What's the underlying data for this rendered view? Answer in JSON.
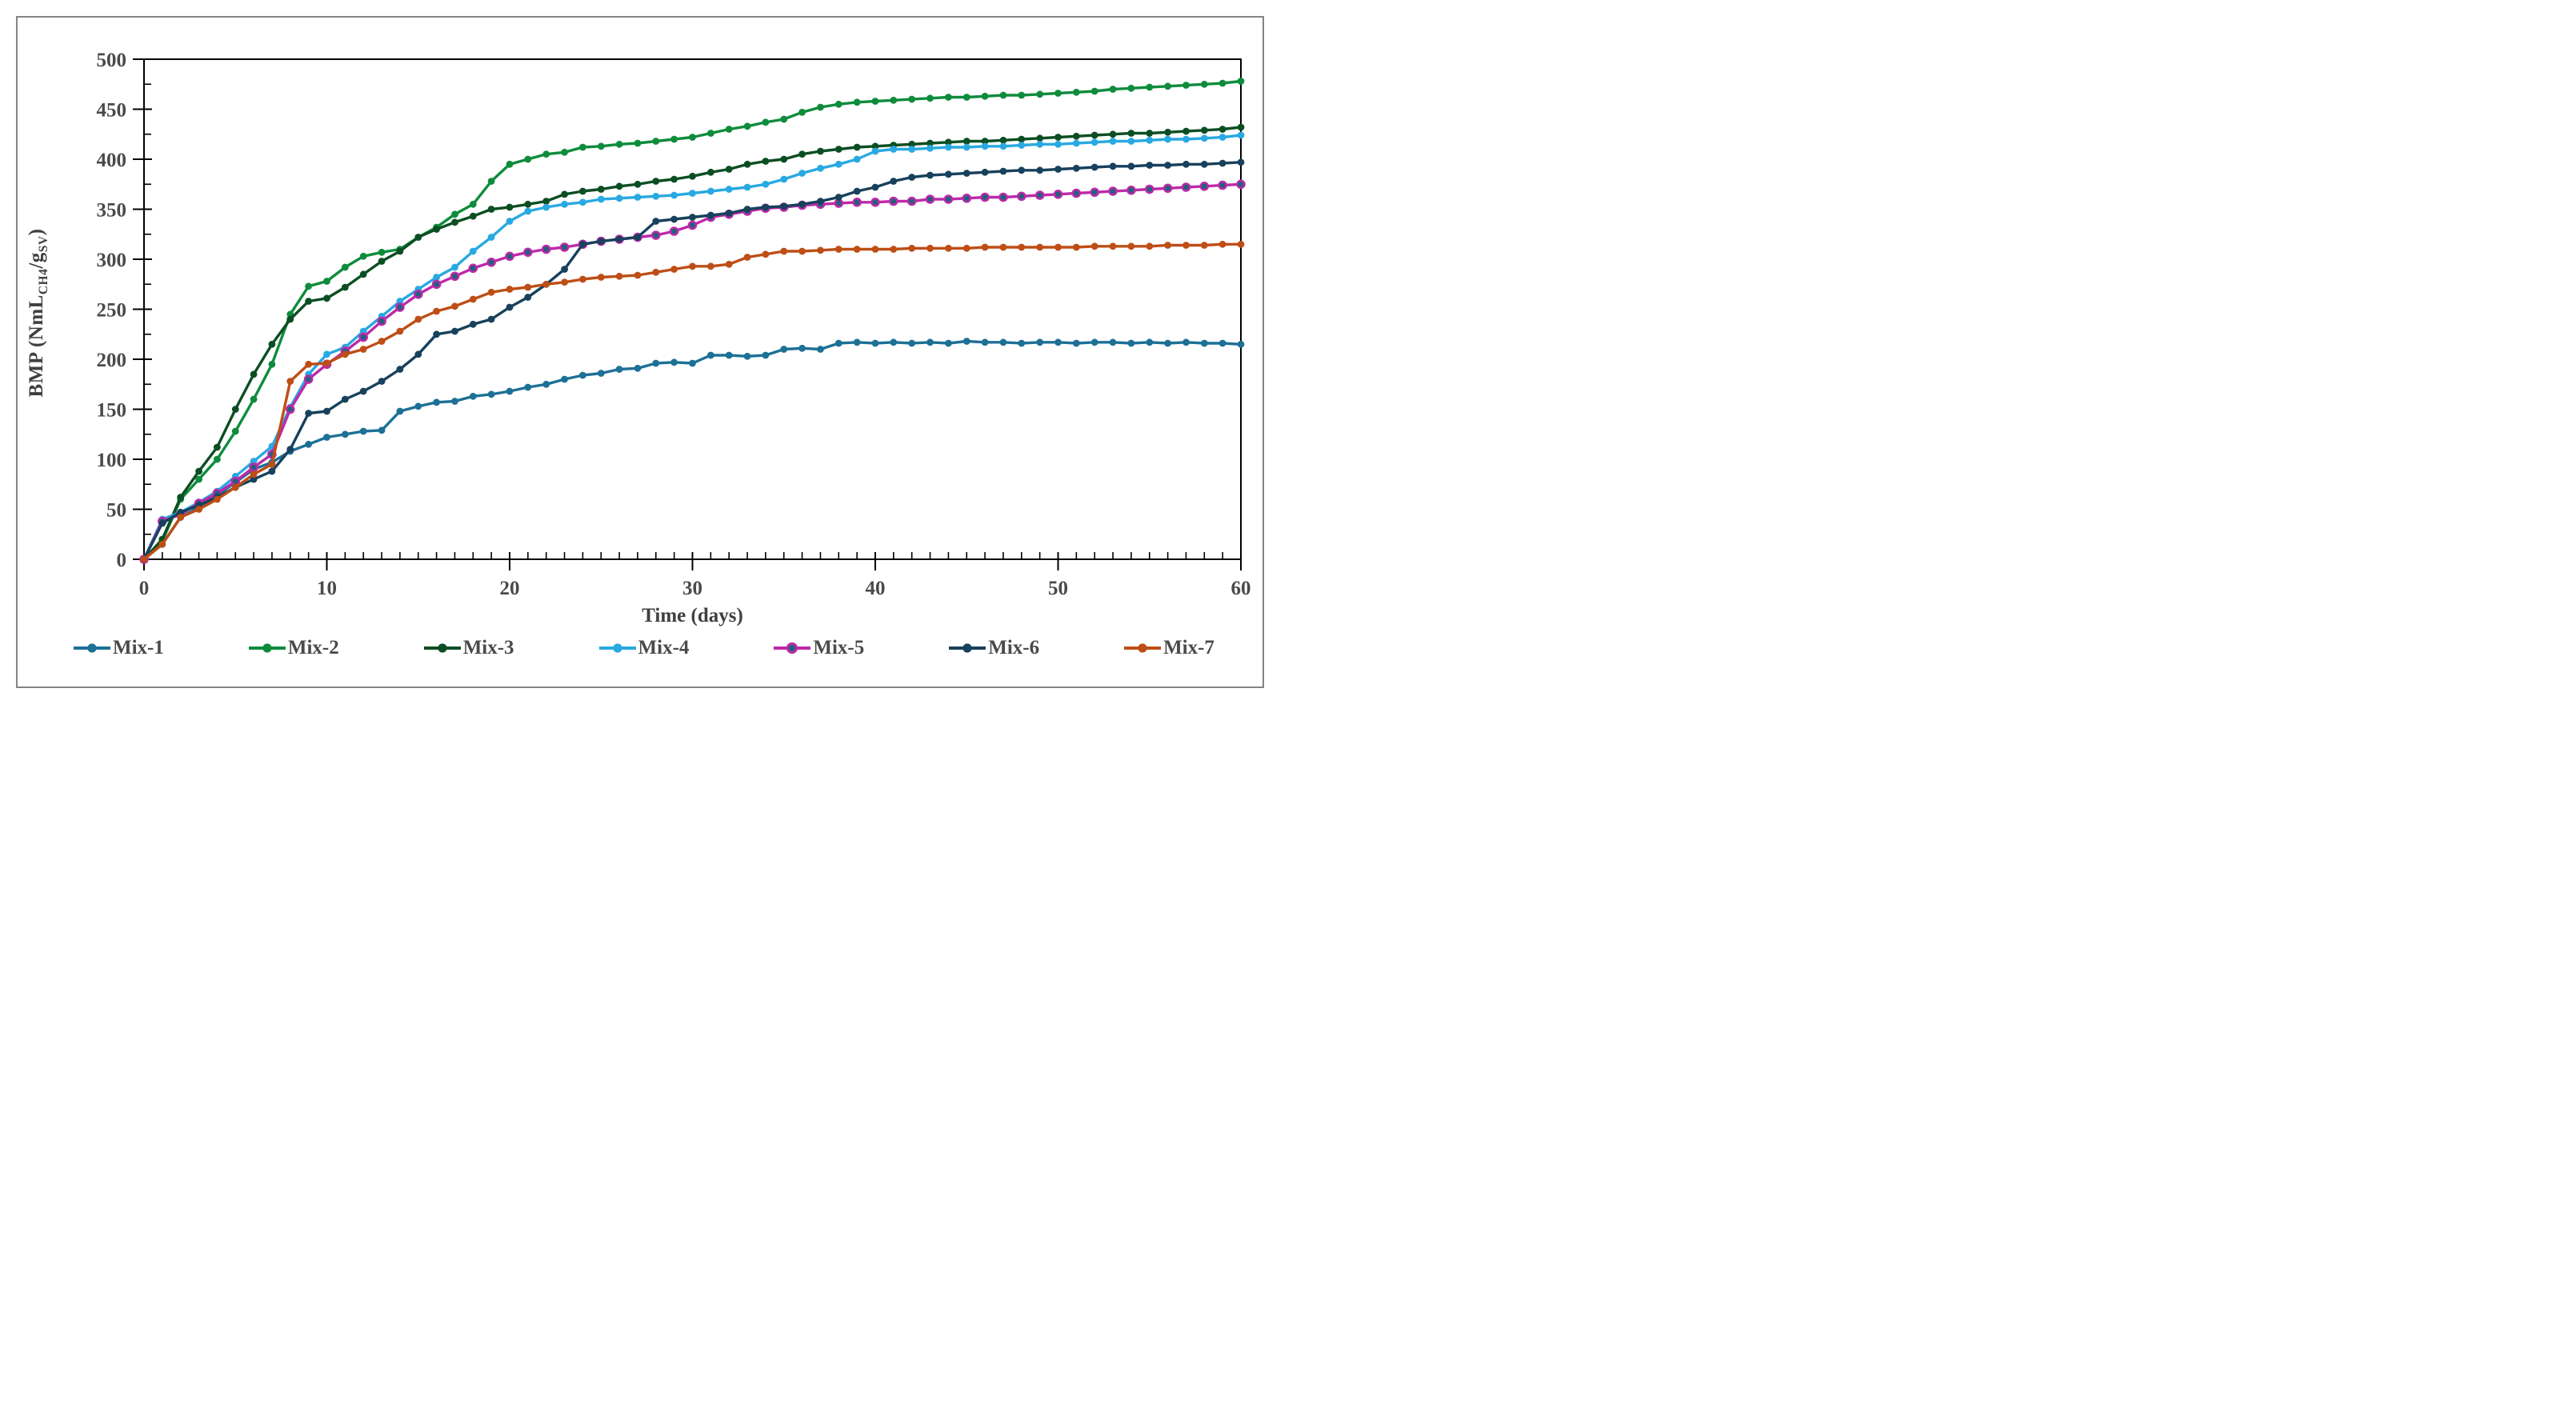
{
  "figure": {
    "background": "#ffffff",
    "border_color": "#848484",
    "text_color": "#3f3f3f",
    "axis_color": "#000000"
  },
  "axes": {
    "y_title": {
      "pre": "BMP (NmL",
      "sub1": "CH4",
      "mid": "/g",
      "sub2": "SV",
      "post": ")"
    },
    "x_title": "Time (days)",
    "y_min": 0,
    "y_max": 500,
    "y_step": 50,
    "y_minor_step": 25,
    "x_min": 0,
    "x_max": 60,
    "x_step": 10,
    "x_minor_step": 1
  },
  "chart_data": {
    "type": "line",
    "title": "",
    "xlabel": "Time (days)",
    "ylabel": "BMP (NmL_CH4/g_SV)",
    "xlim": [
      0,
      60
    ],
    "ylim": [
      0,
      500
    ],
    "grid": false,
    "legend_position": "bottom",
    "x": [
      0,
      1,
      2,
      3,
      4,
      5,
      6,
      7,
      8,
      9,
      10,
      11,
      12,
      13,
      14,
      15,
      16,
      17,
      18,
      19,
      20,
      21,
      22,
      23,
      24,
      25,
      26,
      27,
      28,
      29,
      30,
      31,
      32,
      33,
      34,
      35,
      36,
      37,
      38,
      39,
      40,
      41,
      42,
      43,
      44,
      45,
      46,
      47,
      48,
      49,
      50,
      51,
      52,
      53,
      54,
      55,
      56,
      57,
      58,
      59,
      60
    ],
    "series": [
      {
        "name": "Mix-1",
        "color": "#1D7096",
        "marker_color": "#1D7096",
        "values": [
          0,
          15,
          42,
          52,
          64,
          77,
          90,
          97,
          108,
          115,
          122,
          125,
          128,
          129,
          148,
          153,
          157,
          158,
          163,
          165,
          168,
          172,
          175,
          180,
          184,
          186,
          190,
          191,
          196,
          197,
          196,
          204,
          204,
          203,
          204,
          210,
          211,
          210,
          216,
          217,
          216,
          217,
          216,
          217,
          216,
          218,
          217,
          217,
          216,
          217,
          217,
          216,
          217,
          217,
          216,
          217,
          216,
          217,
          216,
          216,
          215
        ]
      },
      {
        "name": "Mix-2",
        "color": "#0E8C3C",
        "marker_color": "#0E8C3C",
        "values": [
          0,
          18,
          60,
          80,
          100,
          128,
          160,
          195,
          245,
          273,
          278,
          292,
          303,
          307,
          310,
          322,
          332,
          345,
          355,
          378,
          395,
          400,
          405,
          407,
          412,
          413,
          415,
          416,
          418,
          420,
          422,
          426,
          430,
          433,
          437,
          440,
          447,
          452,
          455,
          457,
          458,
          459,
          460,
          461,
          462,
          462,
          463,
          464,
          464,
          465,
          466,
          467,
          468,
          470,
          471,
          472,
          473,
          474,
          475,
          476,
          478
        ]
      },
      {
        "name": "Mix-3",
        "color": "#0C4E23",
        "marker_color": "#0C4E23",
        "values": [
          0,
          20,
          62,
          88,
          112,
          150,
          185,
          215,
          240,
          258,
          261,
          272,
          285,
          298,
          308,
          322,
          330,
          337,
          343,
          350,
          352,
          355,
          358,
          365,
          368,
          370,
          373,
          375,
          378,
          380,
          383,
          387,
          390,
          395,
          398,
          400,
          405,
          408,
          410,
          412,
          413,
          414,
          415,
          416,
          417,
          418,
          418,
          419,
          420,
          421,
          422,
          423,
          424,
          425,
          426,
          426,
          427,
          428,
          429,
          430,
          432
        ]
      },
      {
        "name": "Mix-4",
        "color": "#29A9E1",
        "marker_color": "#29A9E1",
        "values": [
          0,
          40,
          47,
          57,
          68,
          83,
          98,
          113,
          152,
          185,
          205,
          212,
          228,
          243,
          258,
          270,
          282,
          292,
          308,
          322,
          338,
          348,
          352,
          355,
          357,
          360,
          361,
          362,
          363,
          364,
          366,
          368,
          370,
          372,
          375,
          380,
          386,
          391,
          395,
          400,
          408,
          410,
          410,
          411,
          412,
          412,
          413,
          413,
          414,
          415,
          415,
          416,
          417,
          418,
          418,
          419,
          420,
          420,
          421,
          422,
          424
        ]
      },
      {
        "name": "Mix-5",
        "color": "#BE29A9",
        "marker_color": "#20617E",
        "values": [
          0,
          38,
          45,
          56,
          66,
          78,
          92,
          105,
          150,
          180,
          195,
          208,
          222,
          238,
          252,
          265,
          275,
          283,
          291,
          297,
          303,
          307,
          310,
          312,
          315,
          318,
          320,
          322,
          324,
          328,
          334,
          342,
          345,
          348,
          351,
          352,
          354,
          355,
          356,
          357,
          357,
          358,
          358,
          360,
          360,
          361,
          362,
          362,
          363,
          364,
          365,
          366,
          367,
          368,
          369,
          370,
          371,
          372,
          373,
          374,
          375
        ]
      },
      {
        "name": "Mix-6",
        "color": "#17415C",
        "marker_color": "#17415C",
        "values": [
          0,
          36,
          47,
          54,
          62,
          72,
          80,
          88,
          110,
          146,
          148,
          160,
          168,
          178,
          190,
          205,
          225,
          228,
          235,
          240,
          252,
          262,
          275,
          290,
          315,
          318,
          320,
          322,
          338,
          340,
          342,
          344,
          346,
          350,
          352,
          353,
          355,
          358,
          362,
          368,
          372,
          378,
          382,
          384,
          385,
          386,
          387,
          388,
          389,
          389,
          390,
          391,
          392,
          393,
          393,
          394,
          394,
          395,
          395,
          396,
          397
        ]
      },
      {
        "name": "Mix-7",
        "color": "#BE4E16",
        "marker_color": "#BE4E16",
        "values": [
          0,
          15,
          42,
          50,
          60,
          72,
          85,
          95,
          178,
          195,
          196,
          205,
          210,
          218,
          228,
          240,
          248,
          253,
          260,
          267,
          270,
          272,
          275,
          277,
          280,
          282,
          283,
          284,
          287,
          290,
          293,
          293,
          295,
          302,
          305,
          308,
          308,
          309,
          310,
          310,
          310,
          310,
          311,
          311,
          311,
          311,
          312,
          312,
          312,
          312,
          312,
          312,
          313,
          313,
          313,
          313,
          314,
          314,
          314,
          315,
          315
        ]
      }
    ]
  }
}
